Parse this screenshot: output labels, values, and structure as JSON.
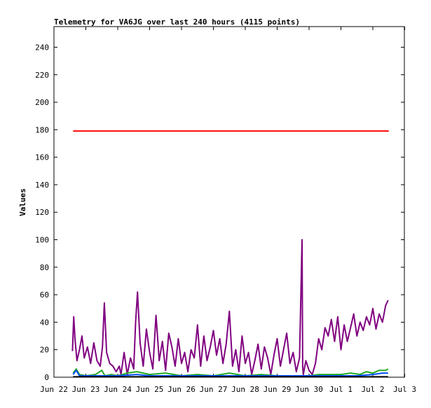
{
  "chart_data": {
    "type": "line",
    "title": "Telemetry for VA6JG over last 240 hours (4115 points)",
    "xlabel": "",
    "ylabel": "Values",
    "ylim": [
      0,
      255
    ],
    "yticks": [
      0,
      20,
      40,
      60,
      80,
      100,
      120,
      140,
      160,
      180,
      200,
      220,
      240
    ],
    "x_range_days": [
      0.0,
      10.48
    ],
    "xticks": [
      {
        "label": "Jun 22",
        "day": 0
      },
      {
        "label": "Jun 23",
        "day": 1
      },
      {
        "label": "Jun 24",
        "day": 2
      },
      {
        "label": "Jun 25",
        "day": 3
      },
      {
        "label": "Jun 26",
        "day": 4
      },
      {
        "label": "Jun 27",
        "day": 5
      },
      {
        "label": "Jun 28",
        "day": 6
      },
      {
        "label": "Jun 29",
        "day": 7
      },
      {
        "label": "Jun 30",
        "day": 8
      },
      {
        "label": "Jul 1",
        "day": 9
      },
      {
        "label": "Jul 2",
        "day": 10
      },
      {
        "label": "Jul 3",
        "day": 11
      }
    ],
    "grid": false,
    "legend": "none",
    "series": [
      {
        "color": "#ff0000",
        "x": [
          0.6,
          2.0,
          3.0,
          4.0,
          5.0,
          6.0,
          7.0,
          8.0,
          9.0,
          10.5
        ],
        "y": [
          179,
          179,
          179,
          179,
          179,
          179,
          179,
          179,
          179,
          179
        ]
      },
      {
        "color": "#800080",
        "x": [
          0.58,
          0.62,
          0.66,
          0.72,
          0.8,
          0.88,
          0.95,
          1.05,
          1.15,
          1.25,
          1.35,
          1.45,
          1.52,
          1.58,
          1.65,
          1.75,
          1.85,
          1.95,
          2.05,
          2.1,
          2.2,
          2.3,
          2.4,
          2.5,
          2.56,
          2.62,
          2.7,
          2.8,
          2.9,
          3.0,
          3.1,
          3.2,
          3.3,
          3.4,
          3.5,
          3.6,
          3.7,
          3.8,
          3.9,
          4.0,
          4.1,
          4.2,
          4.3,
          4.4,
          4.5,
          4.6,
          4.7,
          4.8,
          4.9,
          5.0,
          5.1,
          5.2,
          5.3,
          5.4,
          5.5,
          5.6,
          5.7,
          5.8,
          5.9,
          6.0,
          6.1,
          6.2,
          6.3,
          6.4,
          6.5,
          6.6,
          6.7,
          6.8,
          6.9,
          7.0,
          7.1,
          7.2,
          7.3,
          7.4,
          7.5,
          7.6,
          7.7,
          7.78,
          7.8,
          7.82,
          7.9,
          8.0,
          8.1,
          8.2,
          8.3,
          8.4,
          8.5,
          8.6,
          8.7,
          8.8,
          8.9,
          9.0,
          9.1,
          9.2,
          9.3,
          9.4,
          9.5,
          9.6,
          9.7,
          9.8,
          9.9,
          10.0,
          10.1,
          10.2,
          10.3,
          10.4,
          10.48
        ],
        "y": [
          19,
          44,
          28,
          12,
          20,
          30,
          14,
          22,
          10,
          25,
          12,
          8,
          22,
          54,
          18,
          10,
          8,
          4,
          8,
          2,
          18,
          2,
          14,
          6,
          40,
          62,
          25,
          8,
          35,
          18,
          6,
          45,
          12,
          26,
          5,
          32,
          22,
          8,
          28,
          10,
          18,
          4,
          20,
          14,
          38,
          8,
          30,
          12,
          22,
          34,
          16,
          28,
          10,
          24,
          48,
          8,
          20,
          4,
          30,
          10,
          18,
          2,
          12,
          24,
          6,
          22,
          14,
          2,
          16,
          28,
          8,
          20,
          32,
          10,
          18,
          4,
          14,
          100,
          8,
          2,
          12,
          5,
          2,
          10,
          28,
          20,
          36,
          30,
          42,
          26,
          44,
          20,
          38,
          26,
          36,
          46,
          30,
          40,
          34,
          44,
          38,
          50,
          35,
          46,
          40,
          52,
          56
        ]
      },
      {
        "color": "#22aa22",
        "x": [
          0.6,
          0.7,
          0.8,
          1.0,
          1.3,
          1.5,
          1.6,
          1.8,
          2.0,
          2.3,
          2.6,
          3.0,
          3.5,
          4.0,
          4.5,
          5.0,
          5.5,
          6.0,
          6.5,
          7.0,
          7.5,
          8.0,
          8.3,
          8.6,
          9.0,
          9.3,
          9.6,
          9.8,
          10.0,
          10.2,
          10.4,
          10.48
        ],
        "y": [
          3,
          6,
          2,
          1,
          2,
          5,
          1,
          2,
          1,
          3,
          4,
          2,
          3,
          1,
          2,
          1,
          3,
          1,
          2,
          1,
          1,
          1,
          2,
          2,
          2,
          3,
          2,
          4,
          3,
          5,
          5,
          6
        ]
      },
      {
        "color": "#0050ff",
        "x": [
          0.6,
          0.7,
          0.8,
          1.0,
          2.0,
          2.6,
          3.0,
          4.0,
          5.0,
          6.0,
          7.0,
          8.0,
          8.5,
          9.0,
          9.5,
          10.0,
          10.3,
          10.48
        ],
        "y": [
          2,
          5,
          1,
          1,
          1,
          2,
          1,
          1,
          1,
          1,
          1,
          1,
          1,
          1,
          1,
          2,
          3,
          3
        ]
      },
      {
        "color": "#000000",
        "x": [
          0.6,
          10.48
        ],
        "y": [
          0.3,
          0.3
        ]
      }
    ]
  }
}
